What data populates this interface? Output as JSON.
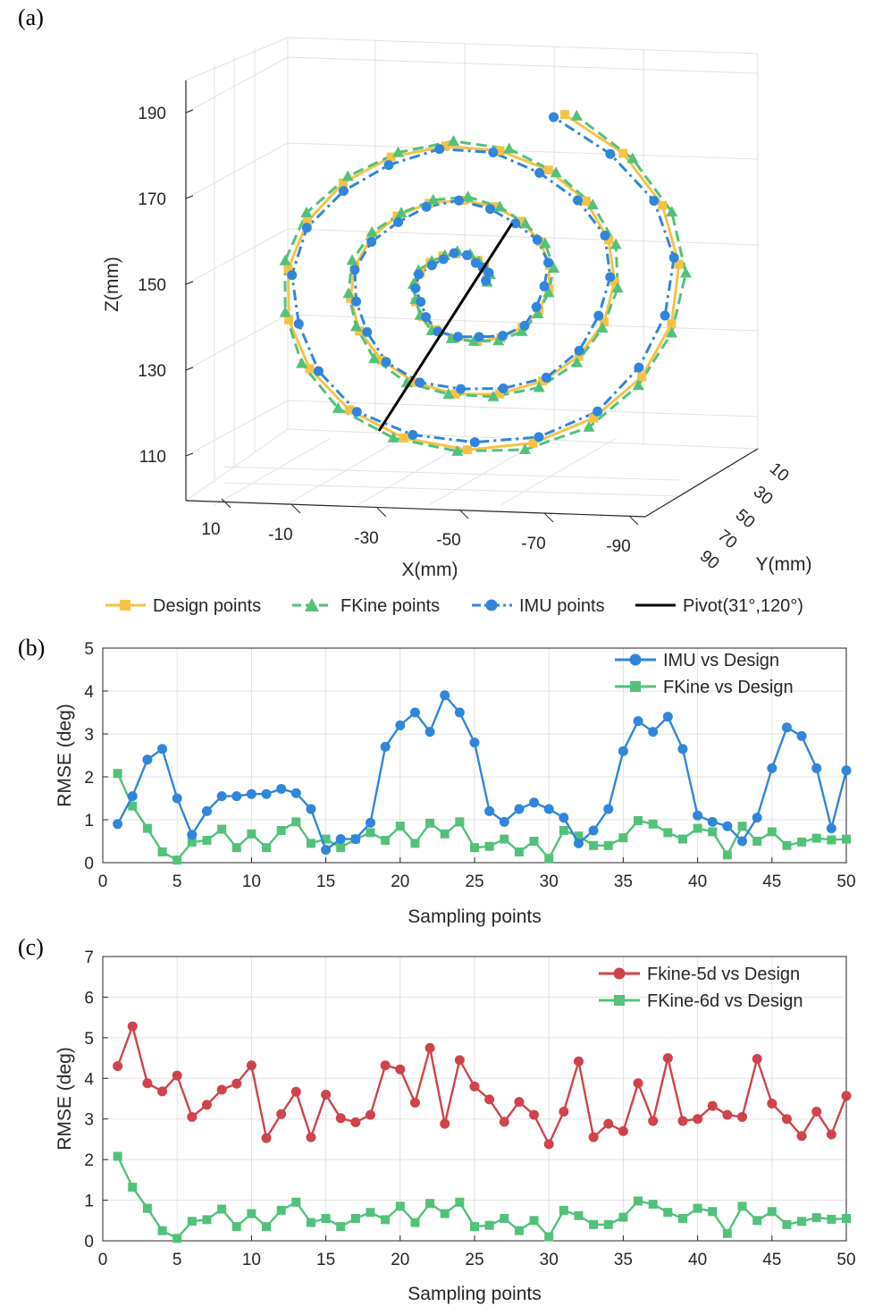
{
  "colors": {
    "design": "#f7c244",
    "fkine": "#52c27a",
    "imu": "#2f86dc",
    "pivot": "#000000",
    "fk5": "#d0434b",
    "fk6": "#52c27a",
    "grid": "#e1e1e1",
    "axis": "#262626"
  },
  "chart_data": [
    {
      "panel": "(a)",
      "type": "line3d",
      "xlabel": "X(mm)",
      "ylabel": "Y(mm)",
      "zlabel": "Z(mm)",
      "x_ticks": [
        "10",
        "-10",
        "-30",
        "-50",
        "-70",
        "-90"
      ],
      "y_ticks": [
        "10",
        "30",
        "50",
        "70",
        "90"
      ],
      "z_ticks": [
        "190",
        "170",
        "150",
        "130",
        "110"
      ],
      "legend": {
        "design": "Design points",
        "fkine": "FKine points",
        "imu": "IMU points",
        "pivot": "Pivot(31°,120°)"
      },
      "spiral": {
        "center_z": 151,
        "start_radius": 4,
        "end_radius": 44,
        "start_angle_deg": 10,
        "turns": 3.15,
        "points": 60
      },
      "pivot": {
        "from_z": 118,
        "to_z": 162
      }
    },
    {
      "panel": "(b)",
      "type": "line",
      "xlabel": "Sampling points",
      "ylabel": "RMSE (deg)",
      "xlim": [
        0,
        50
      ],
      "ylim": [
        0,
        5
      ],
      "xticks": [
        0,
        5,
        10,
        15,
        20,
        25,
        30,
        35,
        40,
        45,
        50
      ],
      "yticks": [
        0,
        1,
        2,
        3,
        4,
        5
      ],
      "x": [
        1,
        2,
        3,
        4,
        5,
        6,
        7,
        8,
        9,
        10,
        11,
        12,
        13,
        14,
        15,
        16,
        17,
        18,
        19,
        20,
        21,
        22,
        23,
        24,
        25,
        26,
        27,
        28,
        29,
        30,
        31,
        32,
        33,
        34,
        35,
        36,
        37,
        38,
        39,
        40,
        41,
        42,
        43,
        44,
        45,
        46,
        47,
        48,
        49,
        50
      ],
      "series": [
        {
          "name": "IMU vs Design",
          "marker": "circle",
          "values": [
            0.9,
            1.55,
            2.4,
            2.65,
            1.5,
            0.65,
            1.2,
            1.55,
            1.55,
            1.6,
            1.6,
            1.72,
            1.62,
            1.25,
            0.3,
            0.55,
            0.55,
            0.93,
            2.7,
            3.2,
            3.5,
            3.05,
            3.9,
            3.5,
            2.8,
            1.2,
            0.95,
            1.25,
            1.4,
            1.25,
            1.05,
            0.45,
            0.75,
            1.25,
            2.6,
            3.3,
            3.05,
            3.4,
            2.65,
            1.1,
            0.95,
            0.85,
            0.5,
            1.05,
            2.2,
            3.15,
            2.95,
            2.2,
            0.8,
            2.15
          ]
        },
        {
          "name": "FKine vs Design",
          "marker": "square",
          "values": [
            2.08,
            1.32,
            0.8,
            0.25,
            0.06,
            0.48,
            0.52,
            0.78,
            0.35,
            0.67,
            0.35,
            0.75,
            0.95,
            0.45,
            0.55,
            0.35,
            0.55,
            0.7,
            0.52,
            0.85,
            0.45,
            0.92,
            0.67,
            0.95,
            0.35,
            0.38,
            0.55,
            0.25,
            0.5,
            0.1,
            0.75,
            0.62,
            0.4,
            0.4,
            0.58,
            0.98,
            0.9,
            0.7,
            0.55,
            0.8,
            0.72,
            0.18,
            0.85,
            0.5,
            0.72,
            0.4,
            0.48,
            0.57,
            0.53,
            0.55
          ]
        }
      ]
    },
    {
      "panel": "(c)",
      "type": "line",
      "xlabel": "Sampling points",
      "ylabel": "RMSE (deg)",
      "xlim": [
        0,
        50
      ],
      "ylim": [
        0,
        7
      ],
      "xticks": [
        0,
        5,
        10,
        15,
        20,
        25,
        30,
        35,
        40,
        45,
        50
      ],
      "yticks": [
        0,
        1,
        2,
        3,
        4,
        5,
        6,
        7
      ],
      "x": [
        1,
        2,
        3,
        4,
        5,
        6,
        7,
        8,
        9,
        10,
        11,
        12,
        13,
        14,
        15,
        16,
        17,
        18,
        19,
        20,
        21,
        22,
        23,
        24,
        25,
        26,
        27,
        28,
        29,
        30,
        31,
        32,
        33,
        34,
        35,
        36,
        37,
        38,
        39,
        40,
        41,
        42,
        43,
        44,
        45,
        46,
        47,
        48,
        49,
        50
      ],
      "series": [
        {
          "name": "Fkine-5d vs Design",
          "marker": "circle",
          "values": [
            4.3,
            5.28,
            3.88,
            3.68,
            4.07,
            3.05,
            3.35,
            3.72,
            3.87,
            4.32,
            2.53,
            3.12,
            3.67,
            2.55,
            3.6,
            3.02,
            2.92,
            3.1,
            4.32,
            4.22,
            3.4,
            4.75,
            2.88,
            4.45,
            3.8,
            3.48,
            2.93,
            3.42,
            3.1,
            2.38,
            3.18,
            4.42,
            2.55,
            2.88,
            2.7,
            3.88,
            2.95,
            4.5,
            2.95,
            3.0,
            3.32,
            3.1,
            3.05,
            4.48,
            3.38,
            3.0,
            2.58,
            3.18,
            2.62,
            3.57
          ]
        },
        {
          "name": "FKine-6d vs Design",
          "marker": "square",
          "values": [
            2.08,
            1.32,
            0.8,
            0.25,
            0.06,
            0.48,
            0.52,
            0.78,
            0.35,
            0.67,
            0.35,
            0.75,
            0.95,
            0.45,
            0.55,
            0.35,
            0.55,
            0.7,
            0.52,
            0.85,
            0.45,
            0.92,
            0.67,
            0.95,
            0.35,
            0.38,
            0.55,
            0.25,
            0.5,
            0.1,
            0.75,
            0.62,
            0.4,
            0.4,
            0.58,
            0.98,
            0.9,
            0.7,
            0.55,
            0.8,
            0.72,
            0.18,
            0.85,
            0.5,
            0.72,
            0.4,
            0.48,
            0.57,
            0.53,
            0.55
          ]
        }
      ]
    }
  ]
}
